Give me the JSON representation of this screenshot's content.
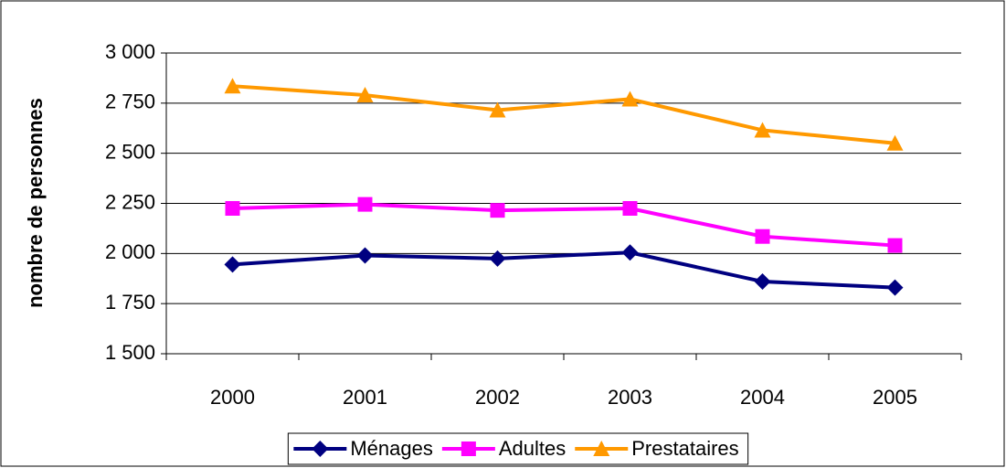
{
  "chart_data": {
    "type": "line",
    "y_label": "nombre de personnes",
    "categories": [
      "2000",
      "2001",
      "2002",
      "2003",
      "2004",
      "2005"
    ],
    "series": [
      {
        "name": "Ménages",
        "color": "#000080",
        "marker": "diamond",
        "values": [
          1945,
          1990,
          1975,
          2005,
          1860,
          1830
        ]
      },
      {
        "name": "Adultes",
        "color": "#FF00FF",
        "marker": "square",
        "values": [
          2225,
          2245,
          2215,
          2225,
          2085,
          2040
        ]
      },
      {
        "name": "Prestataires",
        "color": "#FF9900",
        "marker": "triangle",
        "values": [
          2835,
          2790,
          2715,
          2770,
          2615,
          2550
        ]
      }
    ],
    "ylim": [
      1500,
      3000
    ],
    "yticks": [
      {
        "value": 1500,
        "label": "1 500"
      },
      {
        "value": 1750,
        "label": "1 750"
      },
      {
        "value": 2000,
        "label": "2 000"
      },
      {
        "value": 2250,
        "label": "2 250"
      },
      {
        "value": 2500,
        "label": "2 500"
      },
      {
        "value": 2750,
        "label": "2 750"
      },
      {
        "value": 3000,
        "label": "3 000"
      }
    ],
    "grid": true,
    "legend": "bottom"
  }
}
